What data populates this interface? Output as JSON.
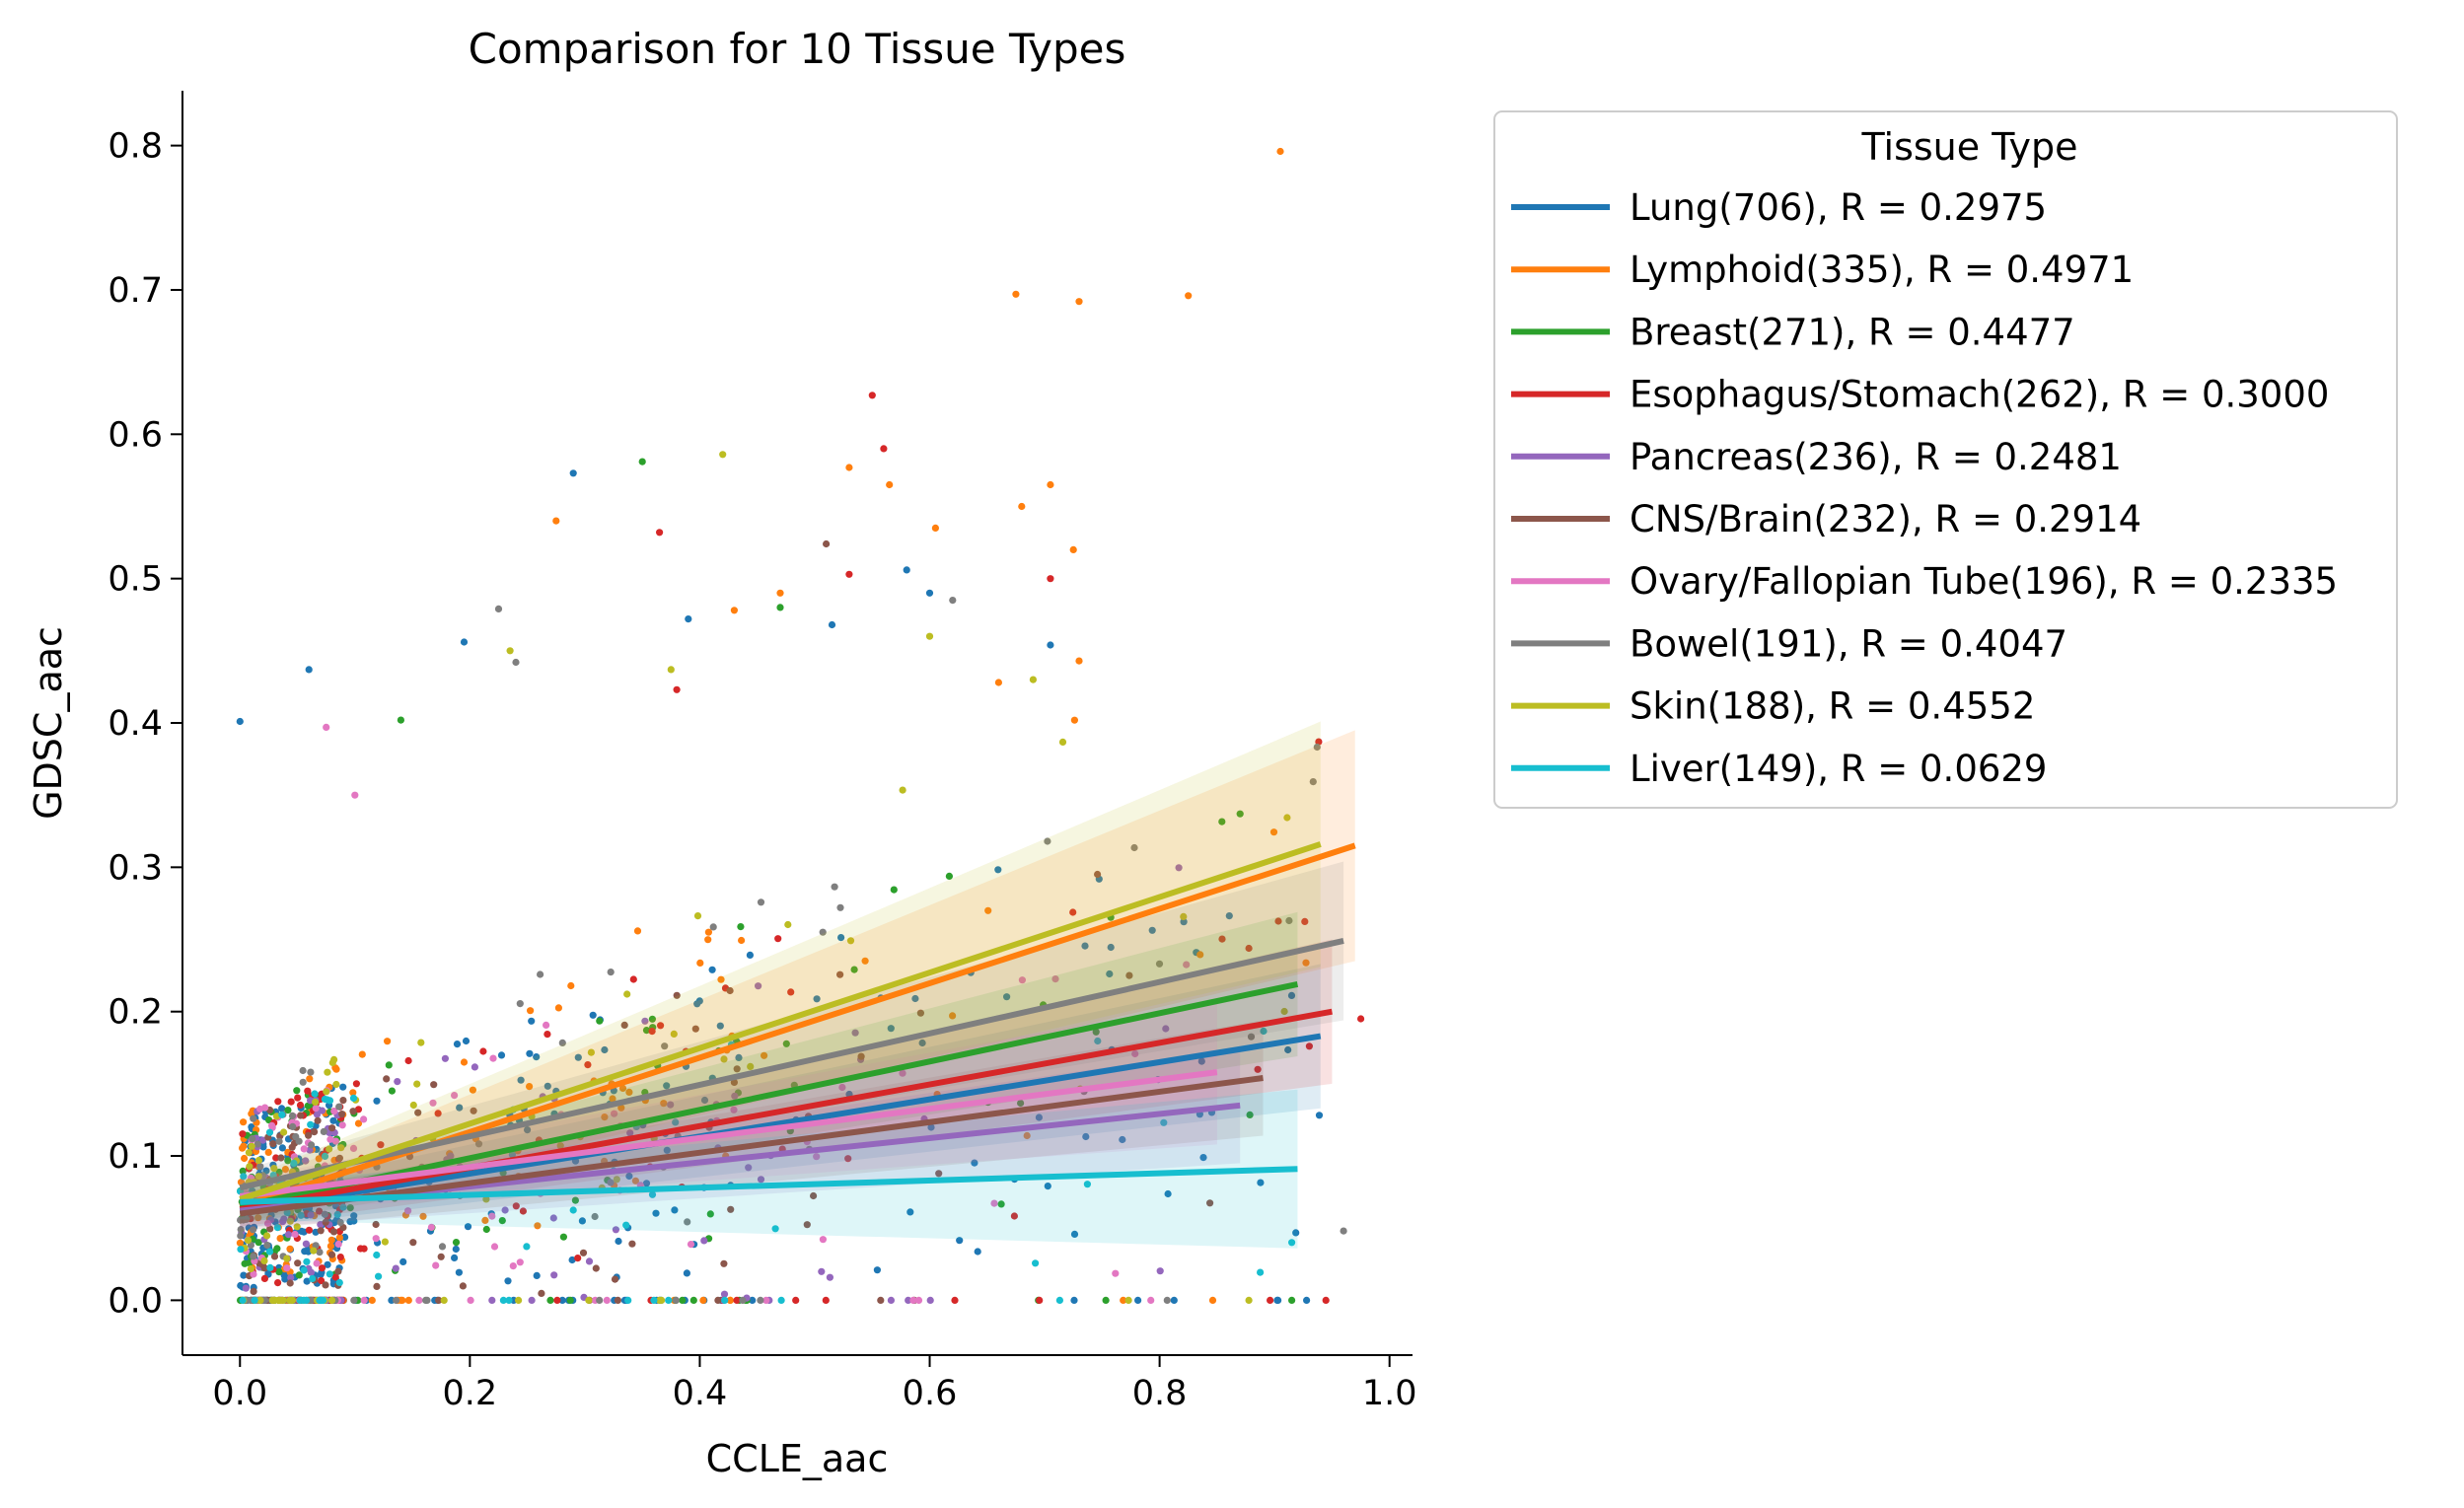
{
  "chart_data": {
    "type": "scatter",
    "title": "Comparison for 10 Tissue Types",
    "xlabel": "CCLE_aac",
    "ylabel": "GDSC_aac",
    "xlim": [
      -0.05,
      1.02
    ],
    "ylim": [
      -0.038,
      0.838
    ],
    "xticks": [
      "0.0",
      "0.2",
      "0.4",
      "0.6",
      "0.8",
      "1.0"
    ],
    "xtick_values": [
      0.0,
      0.2,
      0.4,
      0.6,
      0.8,
      1.0
    ],
    "yticks": [
      "0.0",
      "0.1",
      "0.2",
      "0.3",
      "0.4",
      "0.5",
      "0.6",
      "0.7",
      "0.8"
    ],
    "ytick_values": [
      0.0,
      0.1,
      0.2,
      0.3,
      0.4,
      0.5,
      0.6,
      0.7,
      0.8
    ],
    "grid": false,
    "legend": {
      "title": "Tissue Type",
      "placement": "outside-upper-right"
    },
    "series": [
      {
        "name": "Lung(706), R = 0.2975",
        "color": "#1f77b4",
        "count": 706,
        "r": 0.2975,
        "fit": {
          "x": [
            0.0,
            0.94
          ],
          "y": [
            0.062,
            0.183
          ]
        },
        "ci_halfwidth_end": 0.05
      },
      {
        "name": "Lymphoid(335), R = 0.4971",
        "color": "#ff7f0e",
        "count": 335,
        "r": 0.4971,
        "fit": {
          "x": [
            0.0,
            0.97
          ],
          "y": [
            0.065,
            0.315
          ]
        },
        "ci_halfwidth_end": 0.08
      },
      {
        "name": "Breast(271), R = 0.4477",
        "color": "#2ca02c",
        "count": 271,
        "r": 0.4477,
        "fit": {
          "x": [
            0.0,
            0.92
          ],
          "y": [
            0.065,
            0.219
          ]
        },
        "ci_halfwidth_end": 0.05
      },
      {
        "name": "Esophagus/Stomach(262), R = 0.3000",
        "color": "#d62728",
        "count": 262,
        "r": 0.3,
        "fit": {
          "x": [
            0.0,
            0.95
          ],
          "y": [
            0.063,
            0.2
          ]
        },
        "ci_halfwidth_end": 0.05
      },
      {
        "name": "Pancreas(236), R = 0.2481",
        "color": "#9467bd",
        "count": 236,
        "r": 0.2481,
        "fit": {
          "x": [
            0.0,
            0.87
          ],
          "y": [
            0.062,
            0.135
          ]
        },
        "ci_halfwidth_end": 0.04
      },
      {
        "name": "CNS/Brain(232), R = 0.2914",
        "color": "#8c564b",
        "count": 232,
        "r": 0.2914,
        "fit": {
          "x": [
            0.0,
            0.89
          ],
          "y": [
            0.06,
            0.154
          ]
        },
        "ci_halfwidth_end": 0.04
      },
      {
        "name": "Ovary/Fallopian Tube(196), R = 0.2335",
        "color": "#e377c2",
        "count": 196,
        "r": 0.2335,
        "fit": {
          "x": [
            0.0,
            0.85
          ],
          "y": [
            0.072,
            0.158
          ]
        },
        "ci_halfwidth_end": 0.05
      },
      {
        "name": "Bowel(191), R = 0.4047",
        "color": "#7f7f7f",
        "count": 191,
        "r": 0.4047,
        "fit": {
          "x": [
            0.0,
            0.96
          ],
          "y": [
            0.078,
            0.249
          ]
        },
        "ci_halfwidth_end": 0.055
      },
      {
        "name": "Skin(188), R = 0.4552",
        "color": "#bcbd22",
        "count": 188,
        "r": 0.4552,
        "fit": {
          "x": [
            0.0,
            0.94
          ],
          "y": [
            0.07,
            0.316
          ]
        },
        "ci_halfwidth_end": 0.085
      },
      {
        "name": "Liver(149), R = 0.0629",
        "color": "#17becf",
        "count": 149,
        "r": 0.0629,
        "fit": {
          "x": [
            0.0,
            0.92
          ],
          "y": [
            0.068,
            0.091
          ]
        },
        "ci_halfwidth_end": 0.055
      }
    ],
    "highlight_points": [
      {
        "x": 0.0,
        "y": 0.401,
        "s": 0
      },
      {
        "x": 0.06,
        "y": 0.437,
        "s": 0
      },
      {
        "x": 0.195,
        "y": 0.456,
        "s": 0
      },
      {
        "x": 0.39,
        "y": 0.472,
        "s": 0
      },
      {
        "x": 0.58,
        "y": 0.506,
        "s": 0
      },
      {
        "x": 0.6,
        "y": 0.49,
        "s": 0
      },
      {
        "x": 0.705,
        "y": 0.454,
        "s": 0
      },
      {
        "x": 0.515,
        "y": 0.468,
        "s": 0
      },
      {
        "x": 0.29,
        "y": 0.573,
        "s": 0
      },
      {
        "x": 0.905,
        "y": 0.796,
        "s": 1
      },
      {
        "x": 0.675,
        "y": 0.697,
        "s": 1
      },
      {
        "x": 0.73,
        "y": 0.692,
        "s": 1
      },
      {
        "x": 0.825,
        "y": 0.696,
        "s": 1
      },
      {
        "x": 0.53,
        "y": 0.577,
        "s": 1
      },
      {
        "x": 0.565,
        "y": 0.565,
        "s": 1
      },
      {
        "x": 0.605,
        "y": 0.535,
        "s": 1
      },
      {
        "x": 0.68,
        "y": 0.55,
        "s": 1
      },
      {
        "x": 0.705,
        "y": 0.565,
        "s": 1
      },
      {
        "x": 0.725,
        "y": 0.52,
        "s": 1
      },
      {
        "x": 0.275,
        "y": 0.54,
        "s": 1
      },
      {
        "x": 0.43,
        "y": 0.478,
        "s": 1
      },
      {
        "x": 0.47,
        "y": 0.49,
        "s": 1
      },
      {
        "x": 0.73,
        "y": 0.443,
        "s": 1
      },
      {
        "x": 0.66,
        "y": 0.428,
        "s": 1
      },
      {
        "x": 0.35,
        "y": 0.581,
        "s": 2
      },
      {
        "x": 0.47,
        "y": 0.48,
        "s": 2
      },
      {
        "x": 0.87,
        "y": 0.337,
        "s": 2
      },
      {
        "x": 0.14,
        "y": 0.402,
        "s": 2
      },
      {
        "x": 0.55,
        "y": 0.627,
        "s": 3
      },
      {
        "x": 0.56,
        "y": 0.59,
        "s": 3
      },
      {
        "x": 0.365,
        "y": 0.532,
        "s": 3
      },
      {
        "x": 0.53,
        "y": 0.503,
        "s": 3
      },
      {
        "x": 0.705,
        "y": 0.5,
        "s": 3
      },
      {
        "x": 0.38,
        "y": 0.423,
        "s": 3
      },
      {
        "x": 0.075,
        "y": 0.397,
        "s": 6
      },
      {
        "x": 0.1,
        "y": 0.35,
        "s": 6
      },
      {
        "x": 0.225,
        "y": 0.479,
        "s": 7
      },
      {
        "x": 0.24,
        "y": 0.442,
        "s": 7
      },
      {
        "x": 0.51,
        "y": 0.524,
        "s": 5
      },
      {
        "x": 0.62,
        "y": 0.485,
        "s": 7
      },
      {
        "x": 0.42,
        "y": 0.586,
        "s": 8
      },
      {
        "x": 0.235,
        "y": 0.45,
        "s": 8
      },
      {
        "x": 0.6,
        "y": 0.46,
        "s": 8
      },
      {
        "x": 0.375,
        "y": 0.437,
        "s": 8
      },
      {
        "x": 0.69,
        "y": 0.43,
        "s": 8
      },
      {
        "x": 0.915,
        "y": 0.04,
        "s": 9
      },
      {
        "x": 0.96,
        "y": 0.048,
        "s": 7
      },
      {
        "x": 0.975,
        "y": 0.195,
        "s": 3
      }
    ]
  }
}
